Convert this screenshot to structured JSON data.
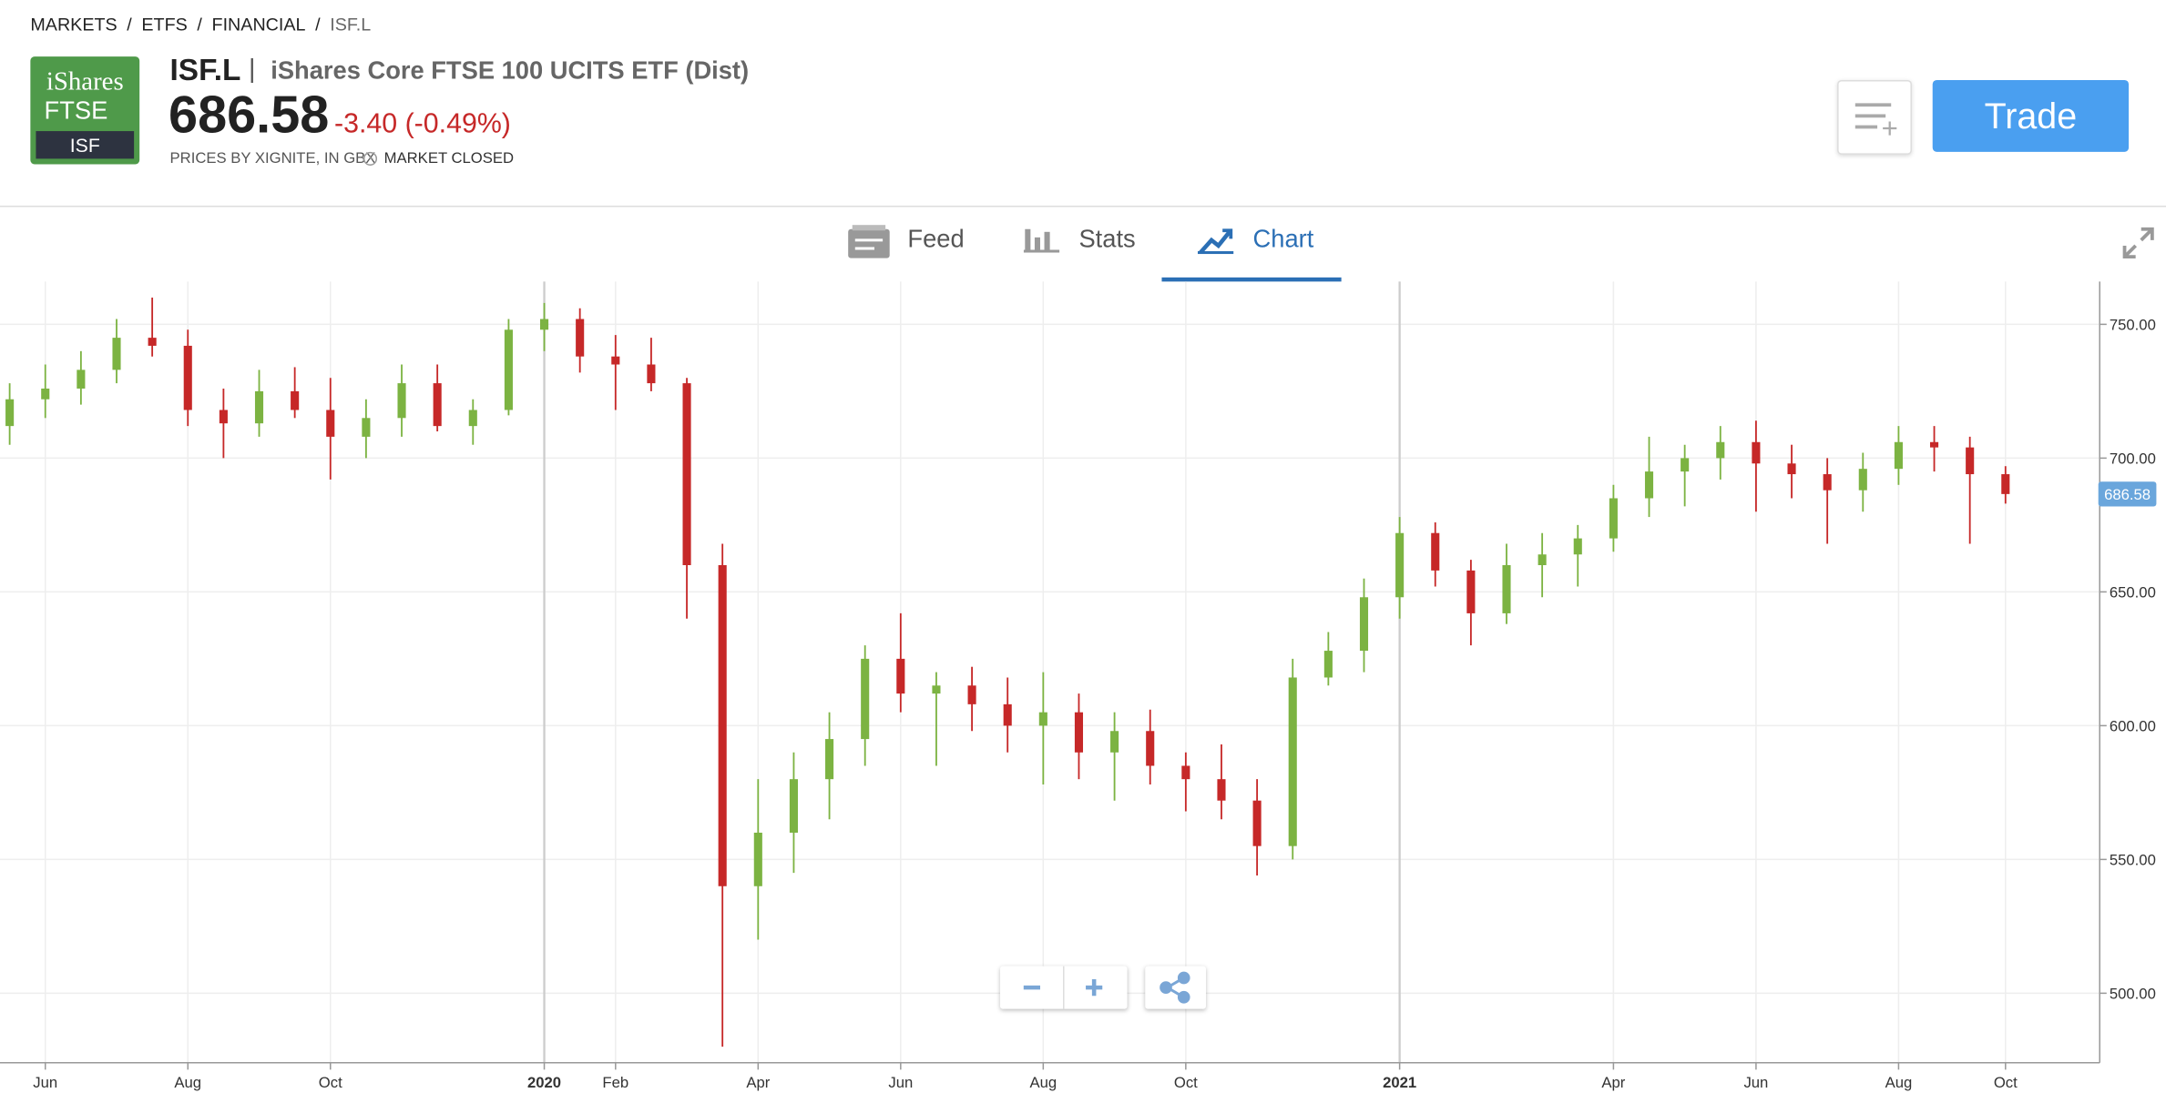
{
  "breadcrumb": {
    "items": [
      "MARKETS",
      "ETFS",
      "FINANCIAL",
      "ISF.L"
    ],
    "separator": "/"
  },
  "logo": {
    "line1": "iShares",
    "line2": "FTSE",
    "code": "ISF"
  },
  "header": {
    "ticker": "ISF.L",
    "divider": "|",
    "name": "iShares Core FTSE 100 UCITS ETF (Dist)",
    "price": "686.58",
    "change": "-3.40 (-0.49%)",
    "source": "PRICES BY XIGNITE, IN GBX",
    "status": "MARKET CLOSED"
  },
  "actions": {
    "trade": "Trade"
  },
  "tabs": [
    "Feed",
    "Stats",
    "Chart"
  ],
  "chart_data": {
    "type": "candlestick",
    "categories": [
      null,
      "Jun",
      null,
      null,
      null,
      "Aug",
      null,
      null,
      null,
      "Oct",
      null,
      null,
      null,
      null,
      null,
      "2020",
      null,
      "Feb",
      null,
      null,
      null,
      "Apr",
      null,
      null,
      null,
      "Jun",
      null,
      null,
      null,
      "Aug",
      null,
      null,
      null,
      "Oct",
      null,
      null,
      null,
      null,
      null,
      "2021",
      null,
      null,
      null,
      null,
      null,
      "Apr",
      null,
      null,
      null,
      "Jun",
      null,
      null,
      null,
      "Aug",
      null,
      null,
      "Oct"
    ],
    "candles": [
      [
        712,
        728,
        705,
        722
      ],
      [
        722,
        735,
        715,
        726
      ],
      [
        726,
        740,
        720,
        733
      ],
      [
        733,
        752,
        728,
        745
      ],
      [
        745,
        760,
        738,
        742
      ],
      [
        742,
        748,
        712,
        718
      ],
      [
        718,
        726,
        700,
        713
      ],
      [
        713,
        733,
        708,
        725
      ],
      [
        725,
        734,
        715,
        718
      ],
      [
        718,
        730,
        692,
        708
      ],
      [
        708,
        722,
        700,
        715
      ],
      [
        715,
        735,
        708,
        728
      ],
      [
        728,
        735,
        710,
        712
      ],
      [
        712,
        722,
        705,
        718
      ],
      [
        718,
        752,
        716,
        748
      ],
      [
        748,
        758,
        740,
        752
      ],
      [
        752,
        756,
        732,
        738
      ],
      [
        738,
        746,
        718,
        735
      ],
      [
        735,
        745,
        725,
        728
      ],
      [
        728,
        730,
        640,
        660
      ],
      [
        660,
        668,
        480,
        540
      ],
      [
        540,
        580,
        520,
        560
      ],
      [
        560,
        590,
        545,
        580
      ],
      [
        580,
        605,
        565,
        595
      ],
      [
        595,
        630,
        585,
        625
      ],
      [
        625,
        642,
        605,
        612
      ],
      [
        612,
        620,
        585,
        615
      ],
      [
        615,
        622,
        598,
        608
      ],
      [
        608,
        618,
        590,
        600
      ],
      [
        600,
        620,
        578,
        605
      ],
      [
        605,
        612,
        580,
        590
      ],
      [
        590,
        605,
        572,
        598
      ],
      [
        598,
        606,
        578,
        585
      ],
      [
        585,
        590,
        568,
        580
      ],
      [
        580,
        593,
        565,
        572
      ],
      [
        572,
        580,
        544,
        555
      ],
      [
        555,
        625,
        550,
        618
      ],
      [
        618,
        635,
        615,
        628
      ],
      [
        628,
        655,
        620,
        648
      ],
      [
        648,
        678,
        640,
        672
      ],
      [
        672,
        676,
        652,
        658
      ],
      [
        658,
        662,
        630,
        642
      ],
      [
        642,
        668,
        638,
        660
      ],
      [
        660,
        672,
        648,
        664
      ],
      [
        664,
        675,
        652,
        670
      ],
      [
        670,
        690,
        665,
        685
      ],
      [
        685,
        708,
        678,
        695
      ],
      [
        695,
        705,
        682,
        700
      ],
      [
        700,
        712,
        692,
        706
      ],
      [
        706,
        714,
        680,
        698
      ],
      [
        698,
        705,
        685,
        694
      ],
      [
        694,
        700,
        668,
        688
      ],
      [
        688,
        702,
        680,
        696
      ],
      [
        696,
        712,
        690,
        706
      ],
      [
        706,
        712,
        695,
        704
      ],
      [
        704,
        708,
        668,
        694
      ],
      [
        694,
        697,
        683,
        686.58
      ]
    ],
    "up_color": "#7cb342",
    "down_color": "#c62828",
    "ylim": [
      474,
      766
    ],
    "yticks": [
      {
        "value": 500,
        "label": "500.00"
      },
      {
        "value": 550,
        "label": "550.00"
      },
      {
        "value": 600,
        "label": "600.00"
      },
      {
        "value": 650,
        "label": "650.00"
      },
      {
        "value": 700,
        "label": "700.00"
      },
      {
        "value": 750,
        "label": "750.00"
      }
    ],
    "grid": true
  }
}
